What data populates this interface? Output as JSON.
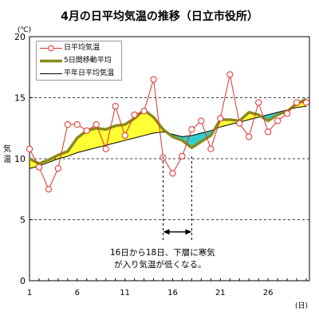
{
  "chart_data": {
    "type": "line",
    "title": "4月の日平均気温の推移（日立市役所）",
    "ylabel": "気温",
    "yunit": "(℃)",
    "xunit": "(日)",
    "xlim": [
      1,
      30
    ],
    "ylim": [
      0,
      20
    ],
    "yticks": [
      0,
      5,
      10,
      15,
      20
    ],
    "xticks": [
      1,
      6,
      11,
      16,
      21,
      26
    ],
    "dashed_gridlines": [
      5,
      10,
      15
    ],
    "legend_position": "top-left",
    "days": [
      1,
      2,
      3,
      4,
      5,
      6,
      7,
      8,
      9,
      10,
      11,
      12,
      13,
      14,
      15,
      16,
      17,
      18,
      19,
      20,
      21,
      22,
      23,
      24,
      25,
      26,
      27,
      28,
      29,
      30
    ],
    "series": [
      {
        "name": "日平均気温",
        "style": "line-with-open-circle-markers",
        "color": "#e0302a",
        "values": [
          10.8,
          9.3,
          7.5,
          9.2,
          12.8,
          12.8,
          12.3,
          12.8,
          10.8,
          14.3,
          11.9,
          13.6,
          13.9,
          16.5,
          10.1,
          8.8,
          10.2,
          12.4,
          13.1,
          10.8,
          13.3,
          16.9,
          12.9,
          11.8,
          14.6,
          12.2,
          13.1,
          13.7,
          14.6,
          14.6
        ]
      },
      {
        "name": "5日間移動平均",
        "style": "thick-line",
        "color": "#8a8a1e",
        "values": [
          10.0,
          9.6,
          9.9,
          10.3,
          10.6,
          11.7,
          12.3,
          12.5,
          12.4,
          12.7,
          12.8,
          13.3,
          14.0,
          13.4,
          12.4,
          11.8,
          11.5,
          10.9,
          11.4,
          11.9,
          13.2,
          13.2,
          13.1,
          13.8,
          13.6,
          13.1,
          13.6,
          13.9,
          14.5,
          14.9
        ]
      },
      {
        "name": "平年日平均気温",
        "style": "thin-line",
        "color": "#000000",
        "values": [
          9.2,
          9.4,
          9.7,
          10.0,
          10.2,
          10.5,
          10.7,
          10.9,
          11.1,
          11.3,
          11.5,
          11.7,
          11.9,
          12.1,
          12.2,
          12.0,
          11.8,
          11.9,
          12.1,
          12.3,
          12.6,
          12.8,
          13.0,
          13.2,
          13.4,
          13.6,
          13.8,
          14.0,
          14.2,
          14.3
        ]
      }
    ],
    "fill_above_normal_color": "#ffff33",
    "fill_below_normal_color": "#33cccc",
    "annotation": {
      "line1": "16日から18日、下層に寒気",
      "line2": "が入り気温が低くなる。",
      "range_days": [
        15,
        18
      ]
    }
  }
}
